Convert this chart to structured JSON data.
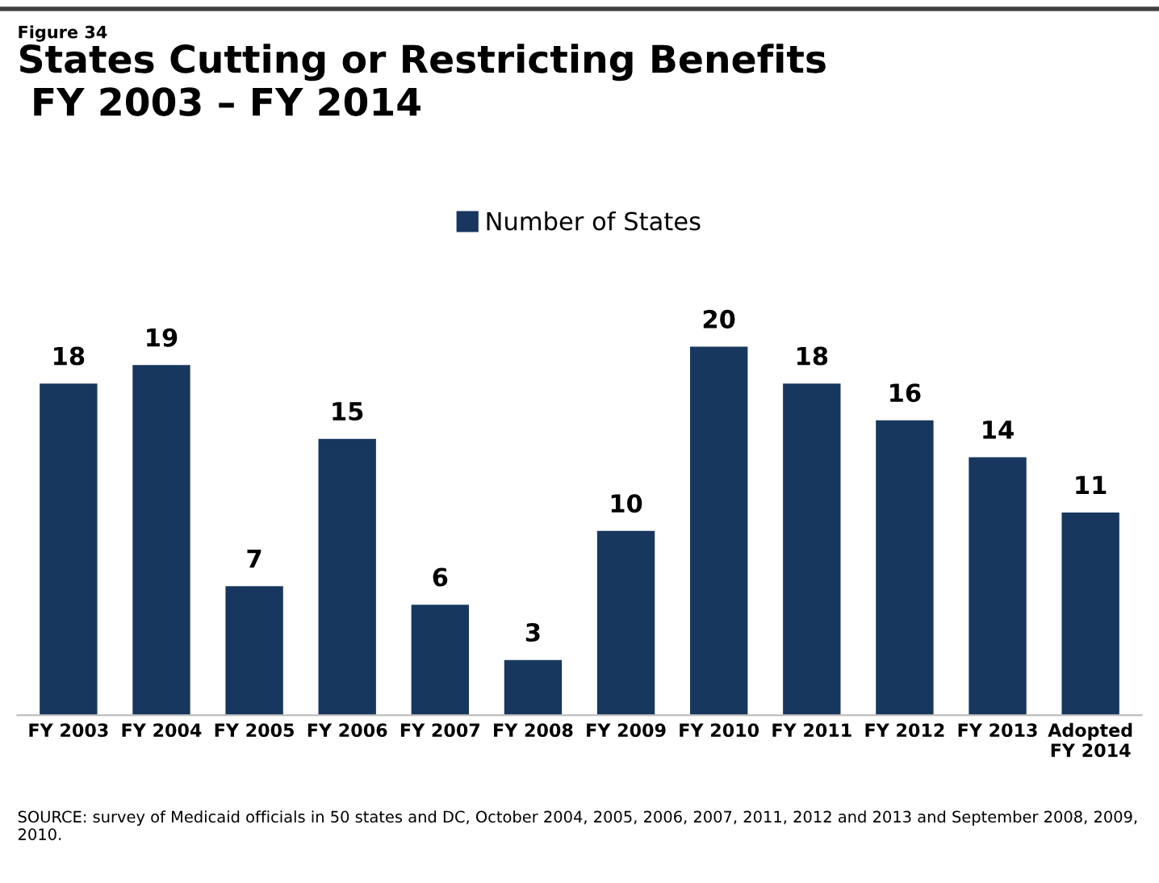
{
  "chart_data": {
    "type": "bar",
    "title": "States Cutting or Restricting Benefits\n FY 2003 – FY 2014",
    "categories": [
      "FY 2003",
      "FY 2004",
      "FY 2005",
      "FY 2006",
      "FY 2007",
      "FY 2008",
      "FY 2009",
      "FY 2010",
      "FY 2011",
      "FY 2012",
      "FY 2013",
      "Adopted\nFY 2014"
    ],
    "series": [
      {
        "name": "Number of States",
        "color": "#17375e",
        "values": [
          18,
          19,
          7,
          15,
          6,
          3,
          10,
          20,
          18,
          16,
          14,
          11
        ]
      }
    ],
    "data_labels": true,
    "legend": "top",
    "grid": false,
    "annotations": [
      "Figure 34",
      "SOURCE: survey of Medicaid officials in 50 states and DC, October 2004, 2005, 2006, 2007, 2011, 2012 and 2013 and September 2008, 2009, 2010."
    ]
  }
}
